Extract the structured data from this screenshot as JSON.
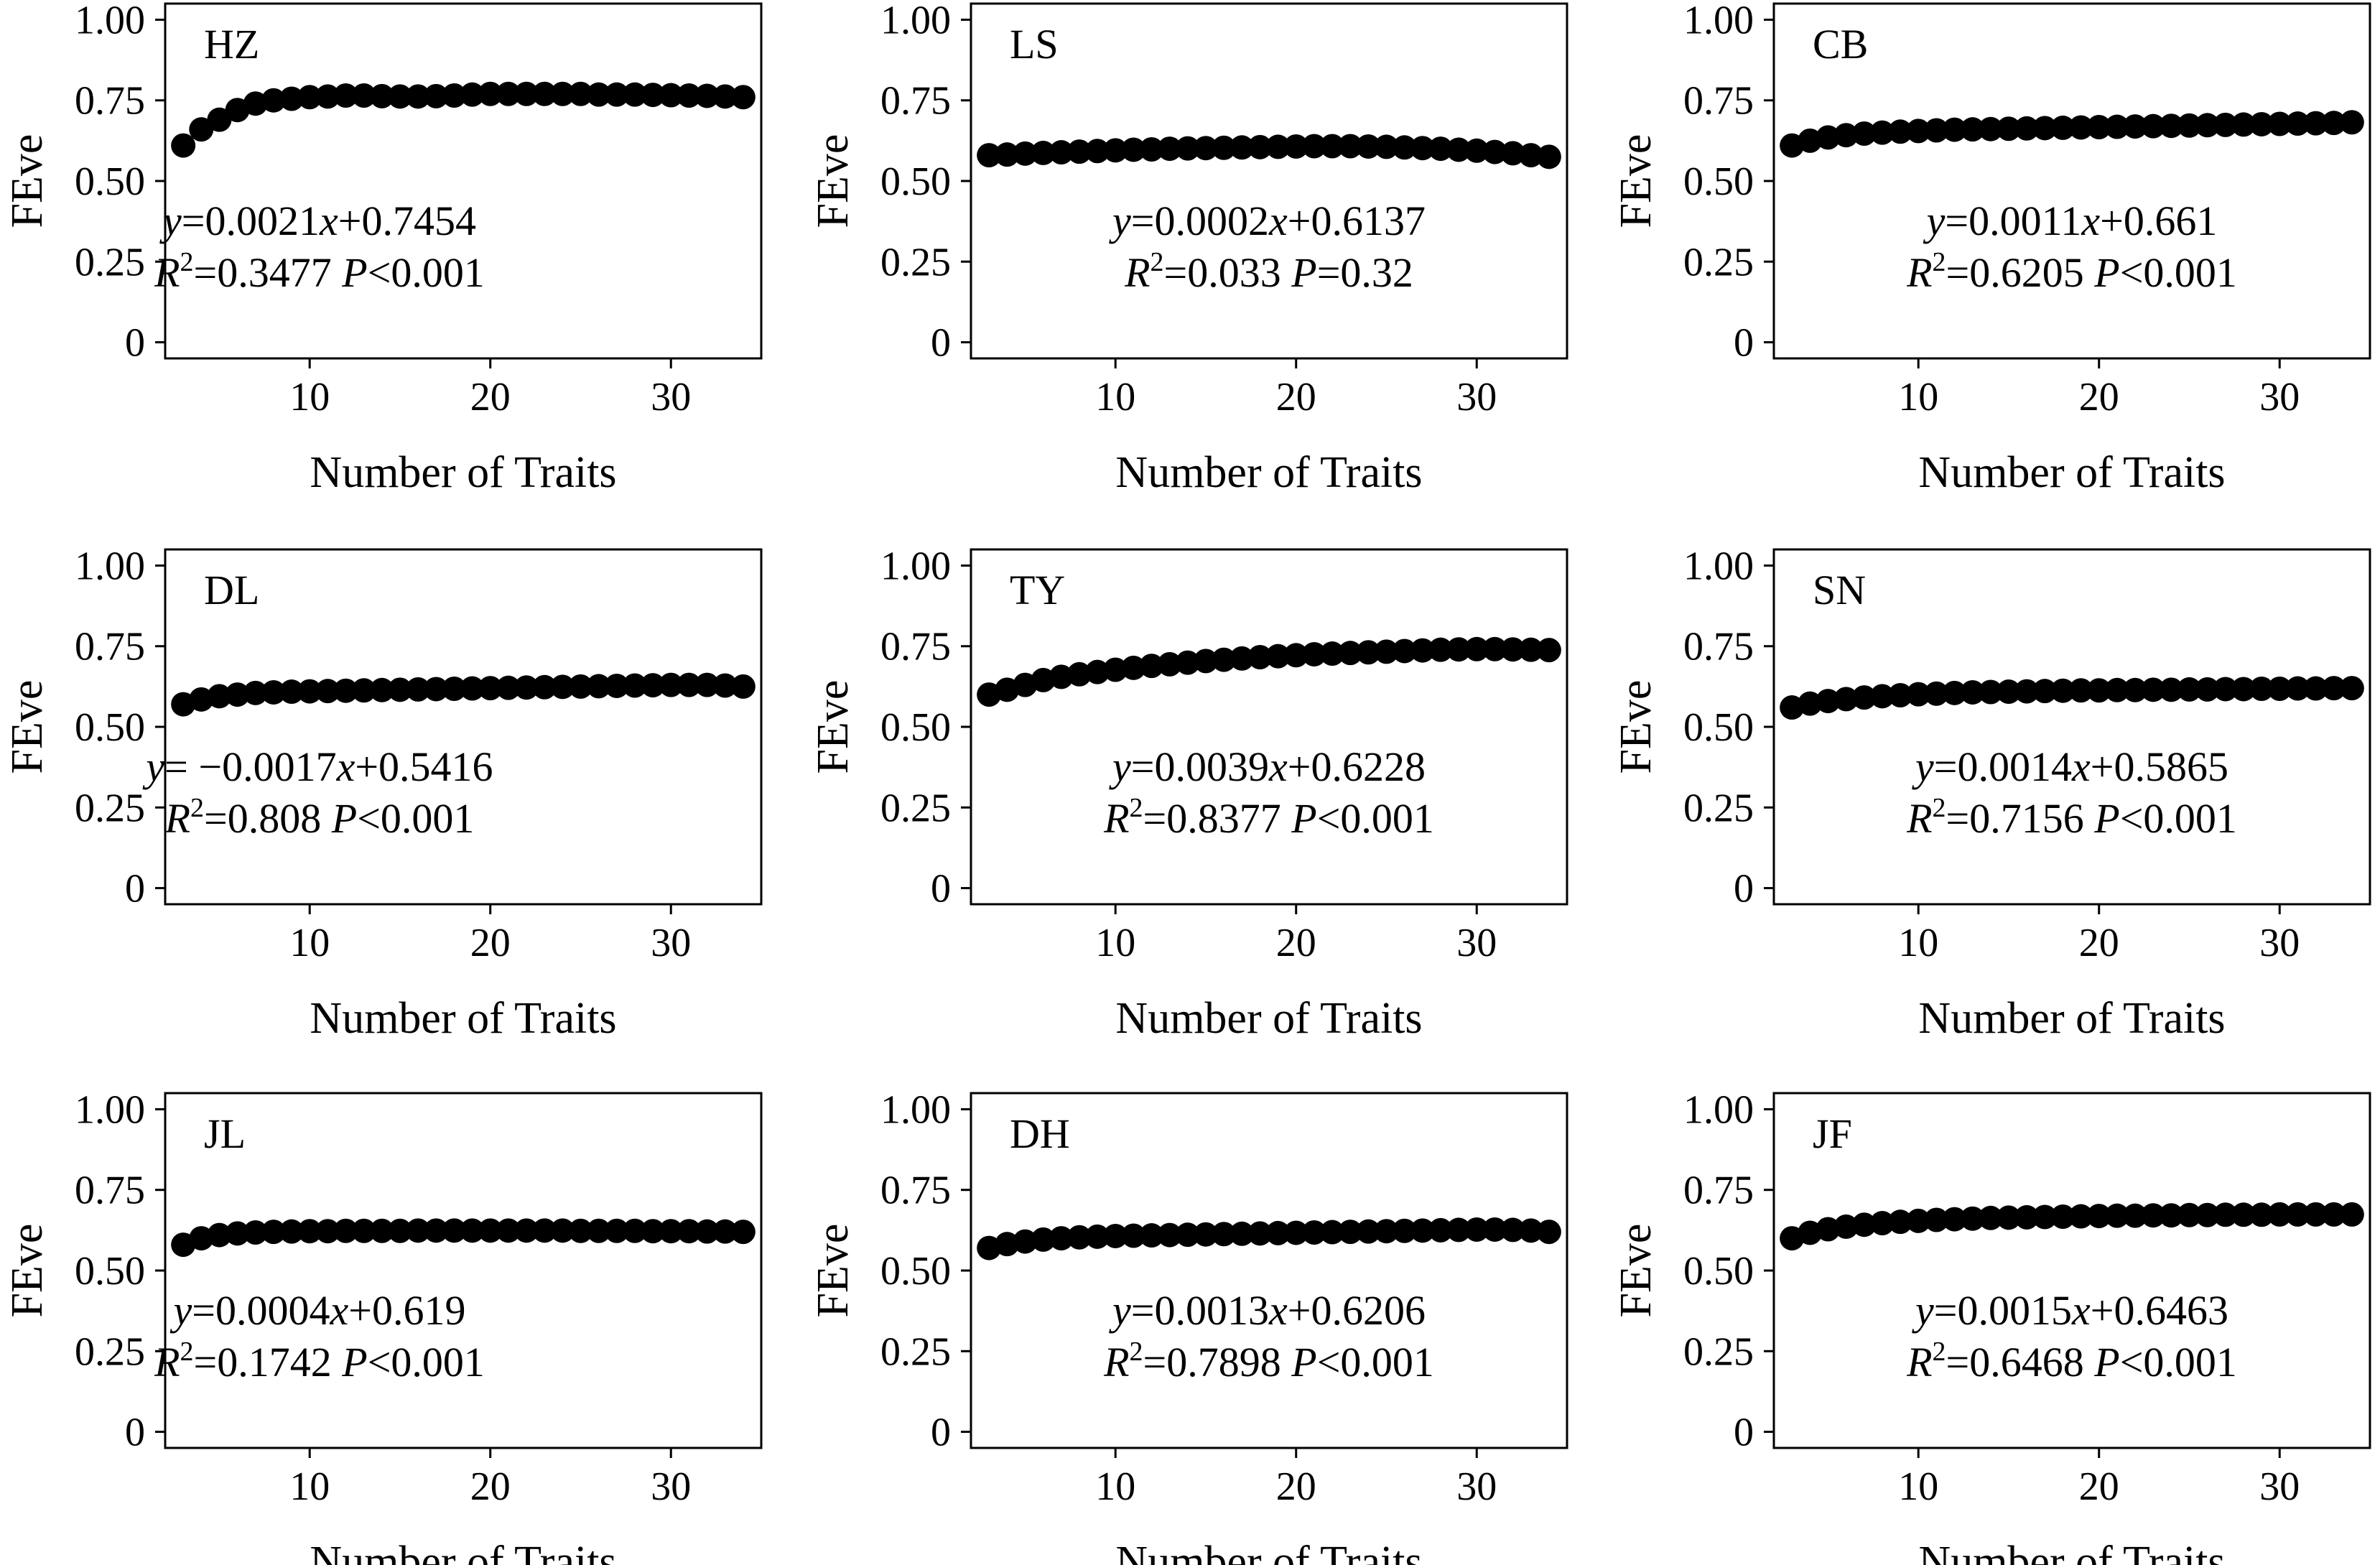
{
  "colors": {
    "marker": "#000000",
    "frame": "#000000",
    "background": "#ffffff"
  },
  "chart_data": [
    {
      "type": "scatter",
      "panel_label": "HZ",
      "xlabel": "Number of Traits",
      "ylabel": "FEve",
      "xlim": [
        2,
        35
      ],
      "ylim": [
        -0.05,
        1.05
      ],
      "x_ticks": [
        10,
        20,
        30
      ],
      "y_ticks": [
        "0",
        "0.25",
        "0.50",
        "0.75",
        "1.00"
      ],
      "grid": false,
      "x": [
        3,
        4,
        5,
        6,
        7,
        8,
        9,
        10,
        11,
        12,
        13,
        14,
        15,
        16,
        17,
        18,
        19,
        20,
        21,
        22,
        23,
        24,
        25,
        26,
        27,
        28,
        29,
        30,
        31,
        32,
        33,
        34
      ],
      "y": [
        0.61,
        0.66,
        0.69,
        0.72,
        0.74,
        0.75,
        0.755,
        0.76,
        0.762,
        0.765,
        0.765,
        0.763,
        0.762,
        0.762,
        0.763,
        0.765,
        0.768,
        0.77,
        0.77,
        0.77,
        0.77,
        0.77,
        0.77,
        0.768,
        0.768,
        0.768,
        0.767,
        0.766,
        0.765,
        0.764,
        0.762,
        0.76
      ],
      "equation": {
        "prefix": "y",
        "body": "=0.0021",
        "var": "x",
        "suffix": "+0.7454"
      },
      "stats": {
        "r": "R",
        "sup": "2",
        "r_value": "=0.3477 ",
        "p": "P",
        "p_value": "<0.001"
      }
    },
    {
      "type": "scatter",
      "panel_label": "LS",
      "xlabel": "Number of Traits",
      "ylabel": "FEve",
      "xlim": [
        2,
        35
      ],
      "ylim": [
        -0.05,
        1.05
      ],
      "x_ticks": [
        10,
        20,
        30
      ],
      "y_ticks": [
        "0",
        "0.25",
        "0.50",
        "0.75",
        "1.00"
      ],
      "grid": false,
      "x": [
        3,
        4,
        5,
        6,
        7,
        8,
        9,
        10,
        11,
        12,
        13,
        14,
        15,
        16,
        17,
        18,
        19,
        20,
        21,
        22,
        23,
        24,
        25,
        26,
        27,
        28,
        29,
        30,
        31,
        32,
        33,
        34
      ],
      "y": [
        0.58,
        0.582,
        0.585,
        0.587,
        0.589,
        0.591,
        0.593,
        0.595,
        0.597,
        0.598,
        0.6,
        0.601,
        0.602,
        0.603,
        0.604,
        0.605,
        0.606,
        0.607,
        0.608,
        0.608,
        0.608,
        0.607,
        0.606,
        0.604,
        0.602,
        0.6,
        0.597,
        0.594,
        0.59,
        0.586,
        0.58,
        0.575
      ],
      "equation": {
        "prefix": "y",
        "body": "=0.0002",
        "var": "x",
        "suffix": "+0.6137"
      },
      "stats": {
        "r": "R",
        "sup": "2",
        "r_value": "=0.033 ",
        "p": "P",
        "p_value": "=0.32"
      }
    },
    {
      "type": "scatter",
      "panel_label": "CB",
      "xlabel": "Number of Traits",
      "ylabel": "FEve",
      "xlim": [
        2,
        35
      ],
      "ylim": [
        -0.05,
        1.05
      ],
      "x_ticks": [
        10,
        20,
        30
      ],
      "y_ticks": [
        "0",
        "0.25",
        "0.50",
        "0.75",
        "1.00"
      ],
      "grid": false,
      "x": [
        3,
        4,
        5,
        6,
        7,
        8,
        9,
        10,
        11,
        12,
        13,
        14,
        15,
        16,
        17,
        18,
        19,
        20,
        21,
        22,
        23,
        24,
        25,
        26,
        27,
        28,
        29,
        30,
        31,
        32,
        33,
        34
      ],
      "y": [
        0.61,
        0.625,
        0.635,
        0.642,
        0.647,
        0.65,
        0.653,
        0.655,
        0.657,
        0.659,
        0.66,
        0.661,
        0.662,
        0.663,
        0.664,
        0.665,
        0.666,
        0.667,
        0.668,
        0.669,
        0.67,
        0.671,
        0.672,
        0.673,
        0.674,
        0.675,
        0.676,
        0.677,
        0.678,
        0.679,
        0.68,
        0.682
      ],
      "equation": {
        "prefix": "y",
        "body": "=0.0011",
        "var": "x",
        "suffix": "+0.661"
      },
      "stats": {
        "r": "R",
        "sup": "2",
        "r_value": "=0.6205 ",
        "p": "P",
        "p_value": "<0.001"
      }
    },
    {
      "type": "scatter",
      "panel_label": "DL",
      "xlabel": "Number of Traits",
      "ylabel": "FEve",
      "xlim": [
        2,
        35
      ],
      "ylim": [
        -0.05,
        1.05
      ],
      "x_ticks": [
        10,
        20,
        30
      ],
      "y_ticks": [
        "0",
        "0.25",
        "0.50",
        "0.75",
        "1.00"
      ],
      "grid": false,
      "x": [
        3,
        4,
        5,
        6,
        7,
        8,
        9,
        10,
        11,
        12,
        13,
        14,
        15,
        16,
        17,
        18,
        19,
        20,
        21,
        22,
        23,
        24,
        25,
        26,
        27,
        28,
        29,
        30,
        31,
        32,
        33,
        34
      ],
      "y": [
        0.57,
        0.585,
        0.595,
        0.6,
        0.605,
        0.607,
        0.609,
        0.61,
        0.611,
        0.612,
        0.613,
        0.614,
        0.615,
        0.616,
        0.617,
        0.618,
        0.619,
        0.62,
        0.621,
        0.622,
        0.623,
        0.624,
        0.625,
        0.626,
        0.627,
        0.628,
        0.629,
        0.63,
        0.63,
        0.63,
        0.628,
        0.625
      ],
      "equation": {
        "prefix": "y",
        "body": "= −0.0017",
        "var": "x",
        "suffix": "+0.5416"
      },
      "stats": {
        "r": "R",
        "sup": "2",
        "r_value": "=0.808 ",
        "p": "P",
        "p_value": "<0.001"
      }
    },
    {
      "type": "scatter",
      "panel_label": "TY",
      "xlabel": "Number of Traits",
      "ylabel": "FEve",
      "xlim": [
        2,
        35
      ],
      "ylim": [
        -0.05,
        1.05
      ],
      "x_ticks": [
        10,
        20,
        30
      ],
      "y_ticks": [
        "0",
        "0.25",
        "0.50",
        "0.75",
        "1.00"
      ],
      "grid": false,
      "x": [
        3,
        4,
        5,
        6,
        7,
        8,
        9,
        10,
        11,
        12,
        13,
        14,
        15,
        16,
        17,
        18,
        19,
        20,
        21,
        22,
        23,
        24,
        25,
        26,
        27,
        28,
        29,
        30,
        31,
        32,
        33,
        34
      ],
      "y": [
        0.6,
        0.615,
        0.63,
        0.645,
        0.655,
        0.663,
        0.67,
        0.677,
        0.683,
        0.689,
        0.694,
        0.699,
        0.704,
        0.708,
        0.712,
        0.716,
        0.719,
        0.722,
        0.725,
        0.727,
        0.729,
        0.731,
        0.733,
        0.735,
        0.737,
        0.739,
        0.74,
        0.741,
        0.741,
        0.74,
        0.739,
        0.738
      ],
      "equation": {
        "prefix": "y",
        "body": "=0.0039",
        "var": "x",
        "suffix": "+0.6228"
      },
      "stats": {
        "r": "R",
        "sup": "2",
        "r_value": "=0.8377 ",
        "p": "P",
        "p_value": "<0.001"
      }
    },
    {
      "type": "scatter",
      "panel_label": "SN",
      "xlabel": "Number of Traits",
      "ylabel": "FEve",
      "xlim": [
        2,
        35
      ],
      "ylim": [
        -0.05,
        1.05
      ],
      "x_ticks": [
        10,
        20,
        30
      ],
      "y_ticks": [
        "0",
        "0.25",
        "0.50",
        "0.75",
        "1.00"
      ],
      "grid": false,
      "x": [
        3,
        4,
        5,
        6,
        7,
        8,
        9,
        10,
        11,
        12,
        13,
        14,
        15,
        16,
        17,
        18,
        19,
        20,
        21,
        22,
        23,
        24,
        25,
        26,
        27,
        28,
        29,
        30,
        31,
        32,
        33,
        34
      ],
      "y": [
        0.56,
        0.572,
        0.58,
        0.586,
        0.591,
        0.595,
        0.598,
        0.601,
        0.603,
        0.605,
        0.607,
        0.608,
        0.609,
        0.61,
        0.611,
        0.612,
        0.613,
        0.613,
        0.614,
        0.614,
        0.615,
        0.615,
        0.616,
        0.616,
        0.617,
        0.617,
        0.618,
        0.618,
        0.619,
        0.619,
        0.62,
        0.62
      ],
      "equation": {
        "prefix": "y",
        "body": "=0.0014",
        "var": "x",
        "suffix": "+0.5865"
      },
      "stats": {
        "r": "R",
        "sup": "2",
        "r_value": "=0.7156 ",
        "p": "P",
        "p_value": "<0.001"
      }
    },
    {
      "type": "scatter",
      "panel_label": "JL",
      "xlabel": "Number of Traits",
      "ylabel": "FEve",
      "xlim": [
        2,
        35
      ],
      "ylim": [
        -0.05,
        1.05
      ],
      "x_ticks": [
        10,
        20,
        30
      ],
      "y_ticks": [
        "0",
        "0.25",
        "0.50",
        "0.75",
        "1.00"
      ],
      "grid": false,
      "x": [
        3,
        4,
        5,
        6,
        7,
        8,
        9,
        10,
        11,
        12,
        13,
        14,
        15,
        16,
        17,
        18,
        19,
        20,
        21,
        22,
        23,
        24,
        25,
        26,
        27,
        28,
        29,
        30,
        31,
        32,
        33,
        34
      ],
      "y": [
        0.58,
        0.6,
        0.61,
        0.615,
        0.618,
        0.62,
        0.621,
        0.622,
        0.622,
        0.623,
        0.623,
        0.623,
        0.623,
        0.624,
        0.624,
        0.624,
        0.624,
        0.624,
        0.624,
        0.624,
        0.624,
        0.624,
        0.623,
        0.623,
        0.623,
        0.623,
        0.622,
        0.622,
        0.622,
        0.621,
        0.621,
        0.62
      ],
      "equation": {
        "prefix": "y",
        "body": "=0.0004",
        "var": "x",
        "suffix": "+0.619"
      },
      "stats": {
        "r": "R",
        "sup": "2",
        "r_value": "=0.1742 ",
        "p": "P",
        "p_value": "<0.001"
      }
    },
    {
      "type": "scatter",
      "panel_label": "DH",
      "xlabel": "Number of Traits",
      "ylabel": "FEve",
      "xlim": [
        2,
        35
      ],
      "ylim": [
        -0.05,
        1.05
      ],
      "x_ticks": [
        10,
        20,
        30
      ],
      "y_ticks": [
        "0",
        "0.25",
        "0.50",
        "0.75",
        "1.00"
      ],
      "grid": false,
      "x": [
        3,
        4,
        5,
        6,
        7,
        8,
        9,
        10,
        11,
        12,
        13,
        14,
        15,
        16,
        17,
        18,
        19,
        20,
        21,
        22,
        23,
        24,
        25,
        26,
        27,
        28,
        29,
        30,
        31,
        32,
        33,
        34
      ],
      "y": [
        0.57,
        0.582,
        0.59,
        0.596,
        0.6,
        0.603,
        0.605,
        0.607,
        0.608,
        0.609,
        0.61,
        0.611,
        0.612,
        0.613,
        0.614,
        0.615,
        0.616,
        0.617,
        0.618,
        0.619,
        0.62,
        0.621,
        0.622,
        0.623,
        0.624,
        0.625,
        0.626,
        0.627,
        0.627,
        0.626,
        0.624,
        0.62
      ],
      "equation": {
        "prefix": "y",
        "body": "=0.0013",
        "var": "x",
        "suffix": "+0.6206"
      },
      "stats": {
        "r": "R",
        "sup": "2",
        "r_value": "=0.7898 ",
        "p": "P",
        "p_value": "<0.001"
      }
    },
    {
      "type": "scatter",
      "panel_label": "JF",
      "xlabel": "Number of Traits",
      "ylabel": "FEve",
      "xlim": [
        2,
        35
      ],
      "ylim": [
        -0.05,
        1.05
      ],
      "x_ticks": [
        10,
        20,
        30
      ],
      "y_ticks": [
        "0",
        "0.25",
        "0.50",
        "0.75",
        "1.00"
      ],
      "grid": false,
      "x": [
        3,
        4,
        5,
        6,
        7,
        8,
        9,
        10,
        11,
        12,
        13,
        14,
        15,
        16,
        17,
        18,
        19,
        20,
        21,
        22,
        23,
        24,
        25,
        26,
        27,
        28,
        29,
        30,
        31,
        32,
        33,
        34
      ],
      "y": [
        0.6,
        0.617,
        0.628,
        0.636,
        0.642,
        0.647,
        0.651,
        0.654,
        0.657,
        0.659,
        0.661,
        0.663,
        0.664,
        0.665,
        0.666,
        0.667,
        0.668,
        0.669,
        0.67,
        0.67,
        0.671,
        0.671,
        0.672,
        0.672,
        0.673,
        0.673,
        0.673,
        0.674,
        0.674,
        0.674,
        0.674,
        0.674
      ],
      "equation": {
        "prefix": "y",
        "body": "=0.0015",
        "var": "x",
        "suffix": "+0.6463"
      },
      "stats": {
        "r": "R",
        "sup": "2",
        "r_value": "=0.6468 ",
        "p": "P",
        "p_value": "<0.001"
      }
    }
  ]
}
